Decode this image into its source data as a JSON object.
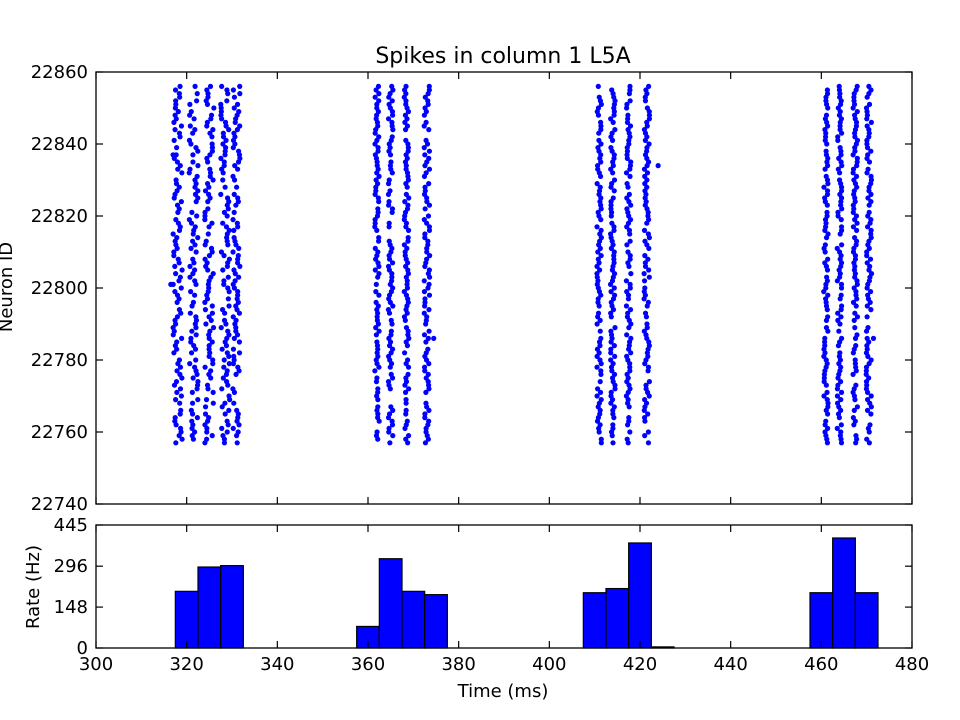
{
  "colors": {
    "spike": "#0000ff",
    "bar": "#0000ff",
    "axis": "#000000",
    "background": "#ffffff"
  },
  "chart_data": [
    {
      "type": "scatter",
      "title": "Spikes in column 1 L5A",
      "xlabel": "",
      "ylabel": "Neuron ID",
      "xlim": [
        300,
        480
      ],
      "ylim": [
        22740,
        22860
      ],
      "yticks": [
        22740,
        22760,
        22780,
        22800,
        22820,
        22840,
        22860
      ],
      "grid": false,
      "bursts": [
        {
          "columns": [
            {
              "t": 318.0,
              "jitter": 1.0
            },
            {
              "t": 321.5,
              "jitter": 1.0
            },
            {
              "t": 325.0,
              "jitter": 1.0
            },
            {
              "t": 328.5,
              "jitter": 1.0
            },
            {
              "t": 331.0,
              "jitter": 0.8
            }
          ]
        },
        {
          "columns": [
            {
              "t": 362.0,
              "jitter": 0.5
            },
            {
              "t": 365.0,
              "jitter": 0.5
            },
            {
              "t": 368.5,
              "jitter": 0.5
            },
            {
              "t": 373.0,
              "jitter": 0.6
            }
          ]
        },
        {
          "columns": [
            {
              "t": 411.0,
              "jitter": 0.5
            },
            {
              "t": 414.0,
              "jitter": 0.5
            },
            {
              "t": 417.5,
              "jitter": 0.5
            },
            {
              "t": 421.5,
              "jitter": 0.6
            }
          ]
        },
        {
          "columns": [
            {
              "t": 461.0,
              "jitter": 0.5
            },
            {
              "t": 464.0,
              "jitter": 0.5
            },
            {
              "t": 467.5,
              "jitter": 0.5
            },
            {
              "t": 470.5,
              "jitter": 0.6
            }
          ]
        }
      ],
      "neuron_range": [
        22757,
        22856
      ],
      "outlier_spikes": [
        {
          "t": 316.5,
          "id": 22801
        },
        {
          "t": 317.0,
          "id": 22837
        },
        {
          "t": 374.5,
          "id": 22786
        },
        {
          "t": 424.0,
          "id": 22834
        },
        {
          "t": 471.5,
          "id": 22786
        }
      ]
    },
    {
      "type": "bar",
      "title": "",
      "xlabel": "Time (ms)",
      "ylabel": "Rate (Hz)",
      "xlim": [
        300,
        480
      ],
      "ylim": [
        0,
        445
      ],
      "xticks": [
        300,
        320,
        340,
        360,
        380,
        400,
        420,
        440,
        460,
        480
      ],
      "yticks": [
        0,
        148,
        296,
        445
      ],
      "bin_width": 5,
      "bins": [
        {
          "start": 317.5,
          "value": 205
        },
        {
          "start": 322.5,
          "value": 293
        },
        {
          "start": 327.5,
          "value": 298
        },
        {
          "start": 357.5,
          "value": 78
        },
        {
          "start": 362.5,
          "value": 323
        },
        {
          "start": 367.5,
          "value": 205
        },
        {
          "start": 372.5,
          "value": 193
        },
        {
          "start": 407.5,
          "value": 200
        },
        {
          "start": 412.5,
          "value": 215
        },
        {
          "start": 417.5,
          "value": 380
        },
        {
          "start": 422.5,
          "value": 4
        },
        {
          "start": 457.5,
          "value": 200
        },
        {
          "start": 462.5,
          "value": 398
        },
        {
          "start": 467.5,
          "value": 200
        }
      ]
    }
  ]
}
